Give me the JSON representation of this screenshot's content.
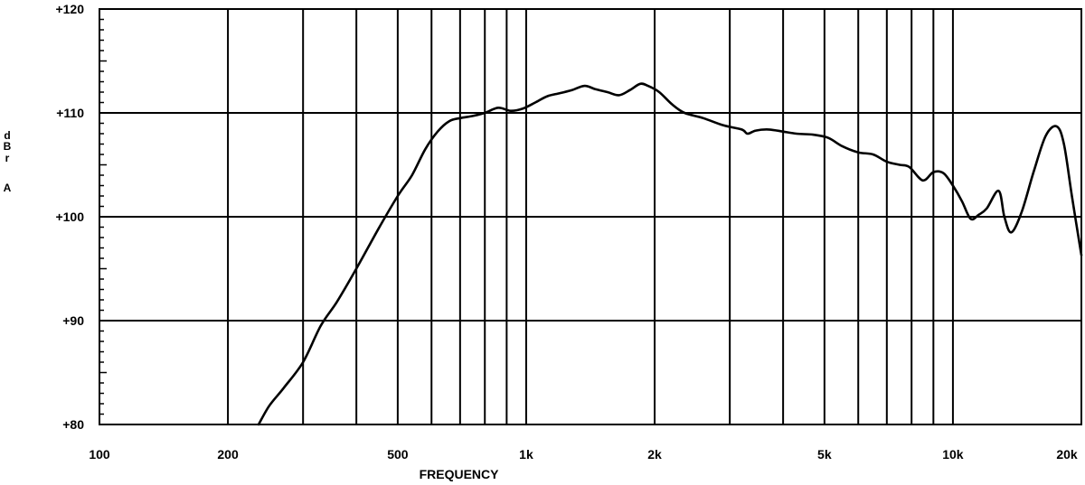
{
  "chart_data": {
    "type": "line",
    "xscale": "log",
    "xlim": [
      100,
      20000
    ],
    "ylim": [
      80,
      120
    ],
    "grid": true,
    "xlabel": "FREQUENCY",
    "ylabel_lines": [
      "d",
      "B",
      "r",
      "A"
    ],
    "x_ticks": [
      {
        "value": 100,
        "label": "100"
      },
      {
        "value": 200,
        "label": "200"
      },
      {
        "value": 500,
        "label": "500"
      },
      {
        "value": 1000,
        "label": "1k"
      },
      {
        "value": 2000,
        "label": "2k"
      },
      {
        "value": 5000,
        "label": "5k"
      },
      {
        "value": 10000,
        "label": "10k"
      },
      {
        "value": 20000,
        "label": "20k"
      }
    ],
    "x_gridlines": [
      200,
      300,
      400,
      500,
      600,
      700,
      800,
      900,
      1000,
      2000,
      3000,
      4000,
      5000,
      6000,
      7000,
      8000,
      9000,
      10000
    ],
    "y_ticks": [
      {
        "value": 80,
        "label": "+80"
      },
      {
        "value": 90,
        "label": "+90"
      },
      {
        "value": 100,
        "label": "+100"
      },
      {
        "value": 110,
        "label": "+110"
      },
      {
        "value": 120,
        "label": "+120"
      }
    ],
    "series": [
      {
        "x": [
          236,
          250,
          270,
          300,
          330,
          360,
          400,
          450,
          500,
          540,
          580,
          620,
          660,
          700,
          750,
          800,
          860,
          920,
          980,
          1050,
          1120,
          1200,
          1280,
          1370,
          1450,
          1550,
          1650,
          1750,
          1850,
          1930,
          2050,
          2200,
          2350,
          2600,
          2900,
          3200,
          3300,
          3450,
          3700,
          4000,
          4300,
          4700,
          5100,
          5500,
          6000,
          6500,
          7000,
          7500,
          7900,
          8500,
          9000,
          9500,
          10000,
          10500,
          11000,
          11500,
          12000,
          12800,
          13200,
          13700,
          14500,
          15500,
          16500,
          17500,
          18200,
          19000,
          20000
        ],
        "y": [
          80.0,
          81.8,
          83.5,
          86.0,
          89.5,
          91.8,
          95.0,
          98.8,
          102.0,
          104.0,
          106.5,
          108.2,
          109.2,
          109.5,
          109.7,
          110.0,
          110.5,
          110.2,
          110.4,
          111.0,
          111.6,
          111.9,
          112.2,
          112.6,
          112.3,
          112.0,
          111.7,
          112.2,
          112.8,
          112.6,
          112.0,
          110.8,
          110.0,
          109.5,
          108.8,
          108.4,
          108.0,
          108.3,
          108.4,
          108.2,
          108.0,
          107.9,
          107.6,
          106.8,
          106.2,
          106.0,
          105.3,
          105.0,
          104.8,
          103.5,
          104.3,
          104.2,
          103.0,
          101.5,
          99.8,
          100.2,
          100.8,
          102.5,
          100.0,
          98.5,
          100.5,
          104.5,
          107.8,
          108.7,
          107.0,
          102.0,
          96.3
        ]
      }
    ]
  }
}
